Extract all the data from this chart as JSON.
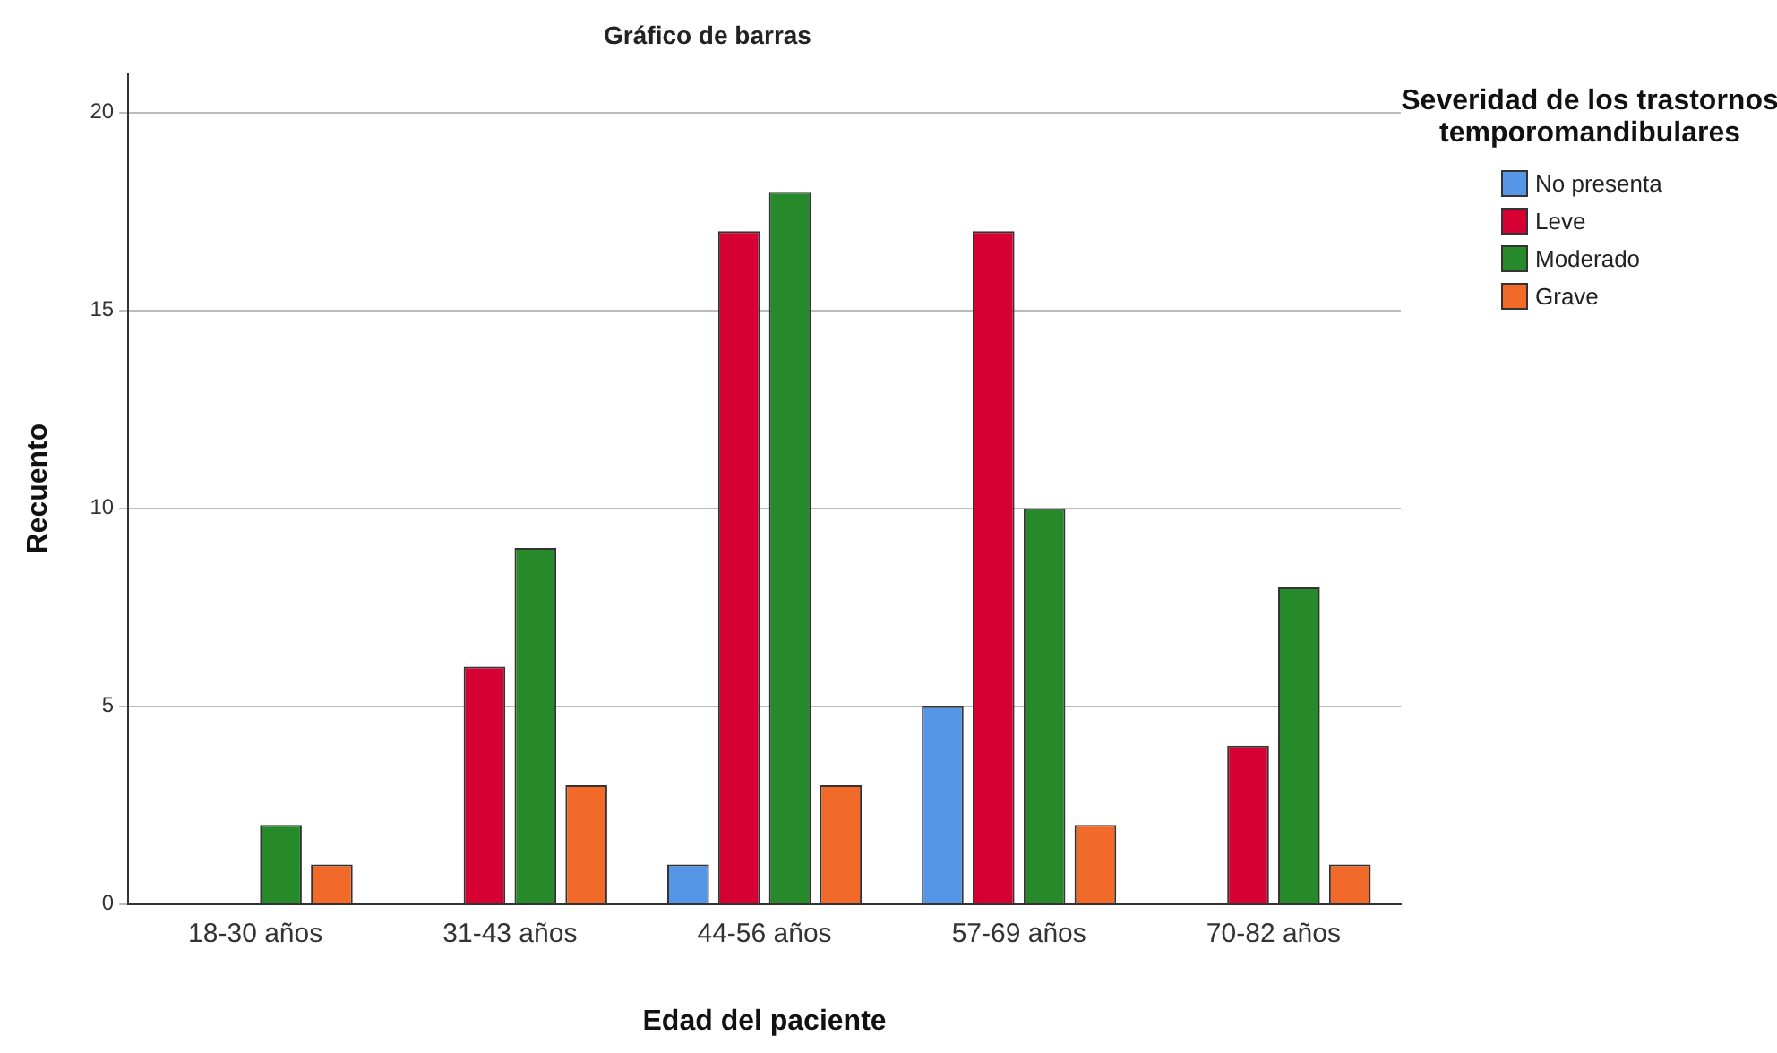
{
  "chart_data": {
    "type": "bar",
    "title": "Gráfico de barras",
    "xlabel": "Edad del paciente",
    "ylabel": "Recuento",
    "legend_title": "Severidad de los trastornos temporomandibulares",
    "categories": [
      "18-30 años",
      "31-43 años",
      "44-56 años",
      "57-69 años",
      "70-82 años"
    ],
    "series": [
      {
        "name": "No presenta",
        "color": "#5596e6",
        "values": [
          null,
          null,
          1,
          5,
          null
        ]
      },
      {
        "name": "Leve",
        "color": "#d70033",
        "values": [
          null,
          6,
          17,
          17,
          4
        ]
      },
      {
        "name": "Moderado",
        "color": "#268a2a",
        "values": [
          2,
          9,
          18,
          10,
          8
        ]
      },
      {
        "name": "Grave",
        "color": "#f26a2a",
        "values": [
          1,
          3,
          3,
          2,
          1
        ]
      }
    ],
    "ylim": [
      0,
      21
    ],
    "yticks": [
      0,
      5,
      10,
      15,
      20
    ],
    "grid": "y",
    "legend": "top right"
  }
}
